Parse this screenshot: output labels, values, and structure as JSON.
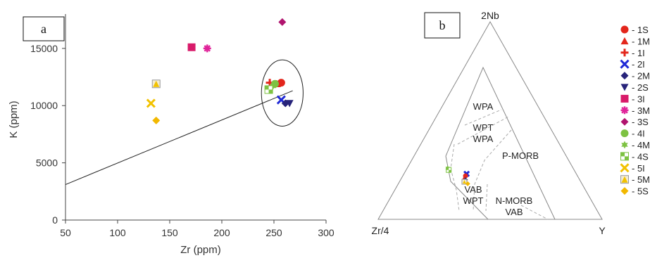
{
  "chart_data": [
    {
      "type": "scatter",
      "panel_label": "a",
      "xlabel": "Zr (ppm)",
      "ylabel": "K (ppm)",
      "xlim": [
        50,
        300
      ],
      "ylim": [
        0,
        18000
      ],
      "x_ticks": [
        "50",
        "100",
        "150",
        "200",
        "250",
        "300"
      ],
      "y_ticks": [
        "0",
        "5000",
        "10000",
        "15000"
      ],
      "grid": false,
      "trend_line": {
        "x": [
          50,
          268
        ],
        "y": [
          3100,
          11300
        ]
      },
      "highlight_ellipse": {
        "center_x": 258,
        "center_y": 11100,
        "radius_x": 20,
        "radius_y": 2900
      },
      "series": [
        {
          "name": "1S",
          "symbol": "circle",
          "color": "#e3261c",
          "points": [
            [
              257,
              12000
            ]
          ]
        },
        {
          "name": "1M",
          "symbol": "triangle",
          "color": "#e3261c",
          "points": [
            [
              253,
              11900
            ]
          ]
        },
        {
          "name": "1I",
          "symbol": "plus",
          "color": "#e3261c",
          "points": [
            [
              246,
              12000
            ]
          ]
        },
        {
          "name": "2I",
          "symbol": "x",
          "color": "#1f29d6",
          "points": [
            [
              257,
              10500
            ]
          ]
        },
        {
          "name": "2M",
          "symbol": "diamond",
          "color": "#27237a",
          "points": [
            [
              261,
              10200
            ]
          ]
        },
        {
          "name": "2S",
          "symbol": "triangle-down",
          "color": "#27237a",
          "points": [
            [
              265,
              10200
            ]
          ]
        },
        {
          "name": "3I",
          "symbol": "square",
          "color": "#d81b6a",
          "points": [
            [
              171,
              15100
            ]
          ]
        },
        {
          "name": "3M",
          "symbol": "asterisk",
          "color": "#e0249a",
          "points": [
            [
              186,
              15000
            ]
          ]
        },
        {
          "name": "3S",
          "symbol": "diamond",
          "color": "#b0146e",
          "points": [
            [
              258,
              17300
            ]
          ]
        },
        {
          "name": "4I",
          "symbol": "circle",
          "color": "#7dc242",
          "points": [
            [
              251,
              11900
            ]
          ]
        },
        {
          "name": "4M",
          "symbol": "star",
          "color": "#7dc242",
          "points": [
            [
              249,
              11700
            ]
          ]
        },
        {
          "name": "4S",
          "symbol": "half-square",
          "color": "#7dc242",
          "points": [
            [
              245,
              11400
            ]
          ]
        },
        {
          "name": "5I",
          "symbol": "x",
          "color": "#f2c200",
          "points": [
            [
              132,
              10200
            ]
          ]
        },
        {
          "name": "5M",
          "symbol": "triangle-in-square",
          "color": "#f2c200",
          "points": [
            [
              137,
              11900
            ]
          ]
        },
        {
          "name": "5S",
          "symbol": "diamond",
          "color": "#f2b800",
          "points": [
            [
              137,
              8700
            ]
          ]
        }
      ]
    },
    {
      "type": "ternary",
      "panel_label": "b",
      "vertices": {
        "top": "2Nb",
        "left": "Zr/4",
        "right": "Y"
      },
      "field_labels": [
        "WPA",
        "WPT",
        "WPA",
        "P-MORB",
        "VAB",
        "WPT",
        "N-MORB",
        "VAB"
      ],
      "series_points": [
        {
          "name": "4M",
          "symbol": "star",
          "color": "#7dc242",
          "composition": {
            "2Nb": 0.26,
            "Zr/4": 0.56,
            "Y": 0.18
          }
        },
        {
          "name": "4S",
          "symbol": "half-square",
          "color": "#7dc242",
          "composition": {
            "2Nb": 0.25,
            "Zr/4": 0.56,
            "Y": 0.19
          }
        },
        {
          "name": "2I",
          "symbol": "x",
          "color": "#1f29d6",
          "composition": {
            "2Nb": 0.23,
            "Zr/4": 0.49,
            "Y": 0.28
          }
        },
        {
          "name": "1S",
          "symbol": "circle",
          "color": "#e3261c",
          "composition": {
            "2Nb": 0.22,
            "Zr/4": 0.5,
            "Y": 0.28
          }
        },
        {
          "name": "1M",
          "symbol": "triangle",
          "color": "#e3261c",
          "composition": {
            "2Nb": 0.21,
            "Zr/4": 0.51,
            "Y": 0.28
          }
        },
        {
          "name": "2M",
          "symbol": "diamond",
          "color": "#27237a",
          "composition": {
            "2Nb": 0.2,
            "Zr/4": 0.51,
            "Y": 0.29
          }
        },
        {
          "name": "5M",
          "symbol": "triangle-in-square",
          "color": "#f2c200",
          "composition": {
            "2Nb": 0.19,
            "Zr/4": 0.52,
            "Y": 0.29
          }
        },
        {
          "name": "5S",
          "symbol": "diamond",
          "color": "#f2b800",
          "composition": {
            "2Nb": 0.18,
            "Zr/4": 0.51,
            "Y": 0.31
          }
        }
      ]
    }
  ],
  "legend": {
    "placement": "right",
    "entries": [
      {
        "label": "- 1S",
        "symbol": "circle",
        "color": "#e3261c"
      },
      {
        "label": "- 1M",
        "symbol": "triangle",
        "color": "#e3261c"
      },
      {
        "label": "- 1I",
        "symbol": "plus",
        "color": "#e3261c"
      },
      {
        "label": "- 2I",
        "symbol": "x",
        "color": "#1f29d6"
      },
      {
        "label": "- 2M",
        "symbol": "diamond",
        "color": "#27237a"
      },
      {
        "label": "- 2S",
        "symbol": "triangle-down",
        "color": "#27237a"
      },
      {
        "label": "- 3I",
        "symbol": "square",
        "color": "#d81b6a"
      },
      {
        "label": "- 3M",
        "symbol": "asterisk",
        "color": "#e0249a"
      },
      {
        "label": "- 3S",
        "symbol": "diamond",
        "color": "#b0146e"
      },
      {
        "label": "- 4I",
        "symbol": "circle",
        "color": "#7dc242"
      },
      {
        "label": "- 4M",
        "symbol": "star",
        "color": "#7dc242"
      },
      {
        "label": "- 4S",
        "symbol": "half-square",
        "color": "#7dc242"
      },
      {
        "label": "- 5I",
        "symbol": "x",
        "color": "#f2c200"
      },
      {
        "label": "- 5M",
        "symbol": "triangle-in-square",
        "color": "#f2c200"
      },
      {
        "label": "- 5S",
        "symbol": "diamond",
        "color": "#f2b800"
      }
    ]
  }
}
